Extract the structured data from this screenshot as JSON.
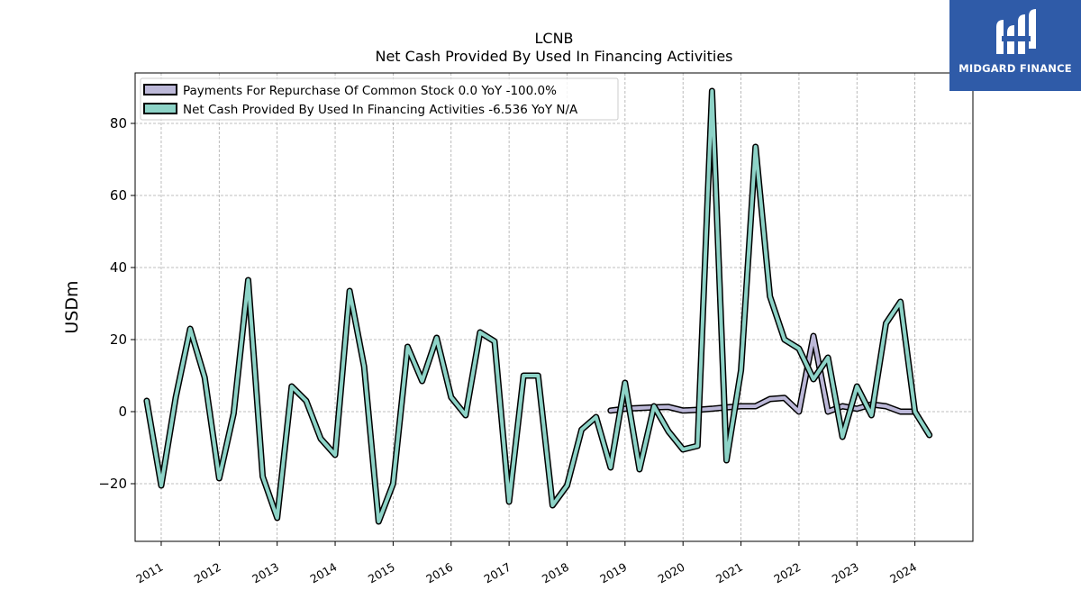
{
  "chart_data": {
    "type": "line",
    "title": "LCNB",
    "subtitle": "Net Cash Provided By Used In Financing Activities",
    "ylabel": "USDm",
    "xlabel": "",
    "ylim": [
      -36,
      94
    ],
    "yticks": [
      -20,
      0,
      20,
      40,
      60,
      80
    ],
    "ytick_labels": [
      "−20",
      "0",
      "20",
      "40",
      "60",
      "80"
    ],
    "xlim": [
      2010.55,
      2025.0
    ],
    "xticks": [
      2011,
      2012,
      2013,
      2014,
      2015,
      2016,
      2017,
      2018,
      2019,
      2020,
      2021,
      2022,
      2023,
      2024
    ],
    "grid": true,
    "legend_position": "top-left",
    "series": [
      {
        "name": "Payments For Repurchase Of Common Stock",
        "legend_label": "Payments For Repurchase Of Common Stock  0.0 YoY -100.0%",
        "color": "#bcb8d8",
        "x": [
          2018.75,
          2019.0,
          2019.25,
          2019.5,
          2019.75,
          2020.0,
          2020.25,
          2020.5,
          2020.75,
          2021.0,
          2021.25,
          2021.5,
          2021.75,
          2022.0,
          2022.25,
          2022.5,
          2022.75,
          2023.0,
          2023.25,
          2023.5,
          2023.75,
          2024.0
        ],
        "y": [
          0.3,
          0.8,
          1.0,
          1.2,
          1.3,
          0.3,
          0.5,
          0.8,
          1.2,
          1.5,
          1.5,
          3.5,
          3.8,
          0.0,
          21.0,
          0.0,
          1.5,
          0.8,
          2.0,
          1.5,
          0.0,
          0.0
        ]
      },
      {
        "name": "Net Cash Provided By Used In Financing Activities",
        "legend_label": "Net Cash Provided By Used In Financing Activities  -6.536 YoY N/A",
        "color": "#8dd3c7",
        "x": [
          2010.75,
          2011.0,
          2011.25,
          2011.5,
          2011.75,
          2012.0,
          2012.25,
          2012.5,
          2012.75,
          2013.0,
          2013.25,
          2013.5,
          2013.75,
          2014.0,
          2014.25,
          2014.5,
          2014.75,
          2015.0,
          2015.25,
          2015.5,
          2015.75,
          2016.0,
          2016.25,
          2016.5,
          2016.75,
          2017.0,
          2017.25,
          2017.5,
          2017.75,
          2018.0,
          2018.25,
          2018.5,
          2018.75,
          2019.0,
          2019.25,
          2019.5,
          2019.75,
          2020.0,
          2020.25,
          2020.5,
          2020.75,
          2021.0,
          2021.25,
          2021.5,
          2021.75,
          2022.0,
          2022.25,
          2022.5,
          2022.75,
          2023.0,
          2023.25,
          2023.5,
          2023.75,
          2024.0,
          2024.25
        ],
        "y": [
          3.0,
          -20.5,
          4.0,
          23.0,
          9.5,
          -18.5,
          -0.5,
          36.5,
          -18.0,
          -29.5,
          7.0,
          3.0,
          -7.5,
          -12.0,
          33.5,
          12.5,
          -30.5,
          -20.0,
          18.0,
          8.5,
          20.5,
          4.0,
          -1.0,
          22.0,
          19.5,
          -25.0,
          10.0,
          10.0,
          -26.0,
          -20.5,
          -5.0,
          -1.5,
          -15.5,
          8.0,
          -16.0,
          1.5,
          -5.5,
          -10.5,
          -9.5,
          89.0,
          -13.5,
          11.5,
          73.5,
          32.0,
          20.0,
          17.5,
          9.0,
          15.0,
          -7.0,
          7.0,
          -1.0,
          24.5,
          30.5,
          0.0,
          -6.5
        ]
      }
    ]
  },
  "logo": {
    "text": "MIDGARD FINANCE"
  }
}
